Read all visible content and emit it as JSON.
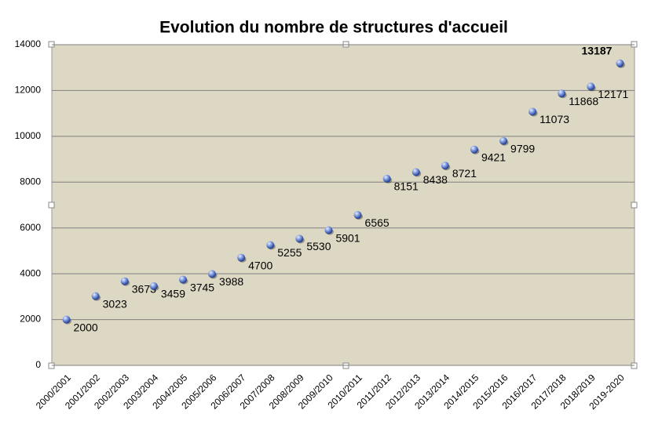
{
  "chart_data": {
    "type": "scatter",
    "title": "Evolution du nombre de structures d'accueil",
    "categories": [
      "2000/2001",
      "2001/2002",
      "2002/2003",
      "2003/2004",
      "2004/2005",
      "2005/2006",
      "2006/2007",
      "2007/2008",
      "2008/2009",
      "2009/2010",
      "2010/2011",
      "2011/2012",
      "2012/2013",
      "2013/2014",
      "2014/2015",
      "2015/2016",
      "2016/2017",
      "2017/2018",
      "2018/2019",
      "2019-2020"
    ],
    "values": [
      2000,
      3023,
      3673,
      3459,
      3745,
      3988,
      4700,
      5255,
      5530,
      5901,
      6565,
      8151,
      8438,
      8721,
      9421,
      9799,
      11073,
      11868,
      12171,
      13187
    ],
    "color": "#6f8fd8",
    "ylim": [
      0,
      14000
    ],
    "yticks": [
      0,
      2000,
      4000,
      6000,
      8000,
      10000,
      12000,
      14000
    ],
    "grid": true
  }
}
